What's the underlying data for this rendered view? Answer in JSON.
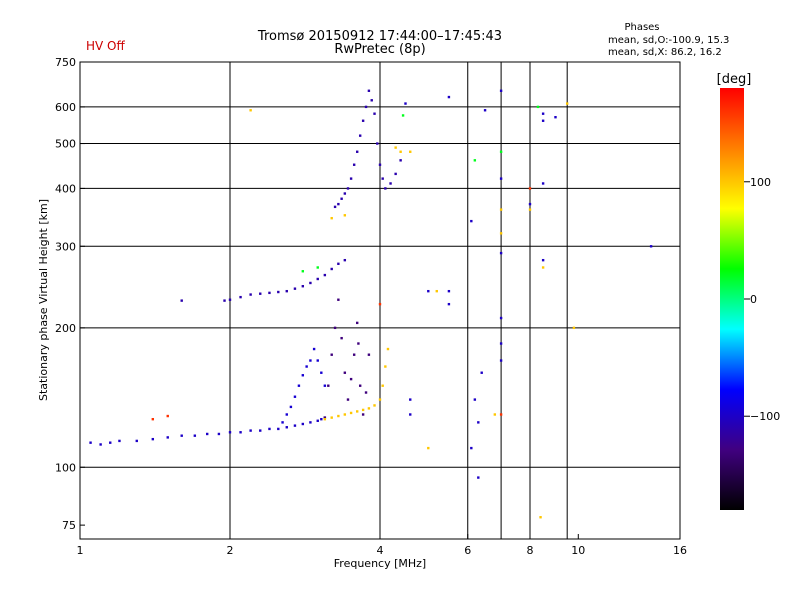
{
  "header": {
    "status": "HV Off",
    "title": "Tromsø 20150912 17:44:00–17:45:43",
    "subtitle": "RwPretec (8p)",
    "phases_title": "Phases",
    "phases_line1": "mean, sd,O:-100.9, 15.3",
    "phases_line2": "mean, sd,X:  86.2, 16.2"
  },
  "colors": {
    "status": "#cc0000",
    "grid": "#000000",
    "colorbar": [
      "#000000",
      "#400080",
      "#0000ff",
      "#00ffff",
      "#00ff00",
      "#ffff00",
      "#ff8000",
      "#ff0000"
    ]
  },
  "colorbar": {
    "label": "[deg]",
    "range": [
      -180,
      180
    ],
    "ticks": [
      {
        "v": 100,
        "label": "100"
      },
      {
        "v": 0,
        "label": "0"
      },
      {
        "v": -100,
        "label": "−100"
      }
    ]
  },
  "chart_data": {
    "type": "scatter",
    "title": "Tromsø 20150912 17:44:00–17:45:43",
    "subtitle": "RwPretec (8p)",
    "xlabel": "Frequency [MHz]",
    "ylabel": "Stationary phase Virtual Height [km]",
    "xscale": "log",
    "yscale": "log",
    "xlim": [
      1,
      16
    ],
    "ylim": [
      70,
      750
    ],
    "grid": true,
    "xticks": [
      {
        "v": 1,
        "label": "1"
      },
      {
        "v": 2,
        "label": "2"
      },
      {
        "v": 4,
        "label": "4"
      },
      {
        "v": 6,
        "label": "6"
      },
      {
        "v": 8,
        "label": "8"
      },
      {
        "v": 10,
        "label": "10"
      },
      {
        "v": 16,
        "label": "16"
      }
    ],
    "xgrid": [
      2,
      4,
      6,
      7,
      8,
      9.5
    ],
    "yticks": [
      {
        "v": 75,
        "label": "75"
      },
      {
        "v": 100,
        "label": "100"
      },
      {
        "v": 200,
        "label": "200"
      },
      {
        "v": 300,
        "label": "300"
      },
      {
        "v": 400,
        "label": "400"
      },
      {
        "v": 500,
        "label": "500"
      },
      {
        "v": 600,
        "label": "600"
      },
      {
        "v": 750,
        "label": "750"
      }
    ],
    "ygrid": [
      100,
      200,
      300,
      400,
      500,
      600
    ],
    "series": [
      {
        "points": [
          [
            1.05,
            113
          ],
          [
            1.1,
            112
          ],
          [
            1.15,
            113
          ],
          [
            1.2,
            114
          ],
          [
            1.3,
            114
          ],
          [
            1.4,
            115
          ],
          [
            1.5,
            116
          ],
          [
            1.6,
            117
          ],
          [
            1.7,
            117
          ],
          [
            1.8,
            118
          ],
          [
            1.9,
            118
          ],
          [
            2.0,
            119
          ],
          [
            2.1,
            119
          ],
          [
            2.2,
            120
          ],
          [
            2.3,
            120
          ],
          [
            2.4,
            121
          ],
          [
            2.5,
            121
          ],
          [
            2.6,
            122
          ],
          [
            2.7,
            123
          ],
          [
            2.8,
            124
          ],
          [
            2.9,
            125
          ],
          [
            3.0,
            126
          ],
          [
            3.05,
            127
          ],
          [
            3.1,
            128
          ]
        ],
        "phase": -100
      },
      {
        "points": [
          [
            1.6,
            229
          ],
          [
            1.95,
            229
          ],
          [
            2.0,
            230
          ],
          [
            2.1,
            233
          ],
          [
            2.2,
            236
          ],
          [
            2.3,
            237
          ],
          [
            2.4,
            238
          ],
          [
            2.5,
            239
          ],
          [
            2.6,
            240
          ],
          [
            2.7,
            243
          ],
          [
            2.8,
            246
          ],
          [
            2.9,
            250
          ],
          [
            3.0,
            255
          ],
          [
            3.1,
            260
          ],
          [
            3.2,
            268
          ],
          [
            3.3,
            275
          ],
          [
            3.4,
            280
          ]
        ],
        "phase": -110
      },
      {
        "points": [
          [
            2.55,
            125
          ],
          [
            2.6,
            130
          ],
          [
            2.65,
            135
          ],
          [
            2.7,
            142
          ],
          [
            2.75,
            150
          ],
          [
            2.8,
            158
          ],
          [
            2.85,
            165
          ],
          [
            2.9,
            170
          ],
          [
            2.95,
            180
          ],
          [
            3.0,
            170
          ],
          [
            3.05,
            160
          ],
          [
            3.1,
            150
          ]
        ],
        "phase": -95
      },
      {
        "points": [
          [
            3.1,
            128
          ],
          [
            3.15,
            150
          ],
          [
            3.2,
            175
          ],
          [
            3.25,
            200
          ],
          [
            3.3,
            230
          ],
          [
            3.35,
            190
          ],
          [
            3.4,
            160
          ],
          [
            3.45,
            140
          ],
          [
            3.5,
            155
          ],
          [
            3.55,
            175
          ],
          [
            3.6,
            205
          ],
          [
            3.62,
            185
          ],
          [
            3.65,
            150
          ],
          [
            3.7,
            130
          ],
          [
            3.75,
            145
          ],
          [
            3.8,
            175
          ]
        ],
        "phase": -130
      },
      {
        "points": [
          [
            3.1,
            127
          ],
          [
            3.2,
            128
          ],
          [
            3.3,
            129
          ],
          [
            3.4,
            130
          ],
          [
            3.5,
            131
          ],
          [
            3.6,
            132
          ],
          [
            3.7,
            133
          ],
          [
            3.8,
            134
          ],
          [
            3.9,
            136
          ],
          [
            4.0,
            140
          ],
          [
            4.05,
            150
          ],
          [
            4.1,
            165
          ],
          [
            4.15,
            180
          ]
        ],
        "phase": 100
      },
      {
        "points": [
          [
            3.25,
            365
          ],
          [
            3.3,
            370
          ],
          [
            3.35,
            380
          ],
          [
            3.4,
            390
          ],
          [
            3.45,
            400
          ],
          [
            3.5,
            420
          ],
          [
            3.55,
            450
          ],
          [
            3.6,
            480
          ],
          [
            3.65,
            520
          ],
          [
            3.7,
            560
          ],
          [
            3.75,
            600
          ],
          [
            3.8,
            650
          ],
          [
            3.85,
            620
          ],
          [
            3.9,
            580
          ],
          [
            3.95,
            500
          ],
          [
            4.0,
            450
          ],
          [
            4.05,
            420
          ],
          [
            4.1,
            400
          ],
          [
            4.2,
            410
          ],
          [
            4.3,
            430
          ],
          [
            4.4,
            460
          ]
        ],
        "phase": -110
      },
      {
        "points": [
          [
            4.5,
            610
          ],
          [
            5.5,
            630
          ],
          [
            6.5,
            590
          ],
          [
            7.0,
            650
          ],
          [
            7.0,
            420
          ],
          [
            7.0,
            290
          ],
          [
            7.0,
            210
          ],
          [
            7.0,
            185
          ],
          [
            7.0,
            170
          ],
          [
            6.4,
            160
          ],
          [
            6.2,
            140
          ],
          [
            6.3,
            125
          ],
          [
            6.1,
            110
          ],
          [
            6.3,
            95
          ],
          [
            6.1,
            340
          ],
          [
            8.0,
            370
          ],
          [
            8.5,
            580
          ],
          [
            8.5,
            560
          ],
          [
            8.5,
            410
          ],
          [
            8.5,
            280
          ],
          [
            9.0,
            570
          ],
          [
            14.0,
            300
          ],
          [
            4.6,
            140
          ],
          [
            4.6,
            130
          ],
          [
            5.0,
            240
          ],
          [
            5.5,
            240
          ],
          [
            5.5,
            225
          ]
        ],
        "phase": -100
      },
      {
        "points": [
          [
            2.2,
            590
          ],
          [
            4.4,
            480
          ],
          [
            4.6,
            480
          ],
          [
            5.2,
            240
          ],
          [
            7.0,
            360
          ],
          [
            7.0,
            320
          ],
          [
            8.0,
            360
          ],
          [
            8.5,
            270
          ],
          [
            9.5,
            610
          ],
          [
            9.8,
            200
          ],
          [
            8.4,
            78
          ],
          [
            6.8,
            130
          ],
          [
            5.0,
            110
          ],
          [
            4.3,
            490
          ],
          [
            3.4,
            350
          ],
          [
            3.2,
            345
          ]
        ],
        "phase": 100
      },
      {
        "points": [
          [
            2.8,
            265
          ],
          [
            3.0,
            270
          ],
          [
            4.45,
            575
          ],
          [
            7.0,
            480
          ],
          [
            8.3,
            600
          ],
          [
            6.2,
            460
          ]
        ],
        "phase": 20
      },
      {
        "points": [
          [
            1.4,
            127
          ],
          [
            1.5,
            129
          ],
          [
            7.0,
            130
          ],
          [
            8.0,
            400
          ],
          [
            4.0,
            225
          ]
        ],
        "phase": 160
      }
    ]
  }
}
